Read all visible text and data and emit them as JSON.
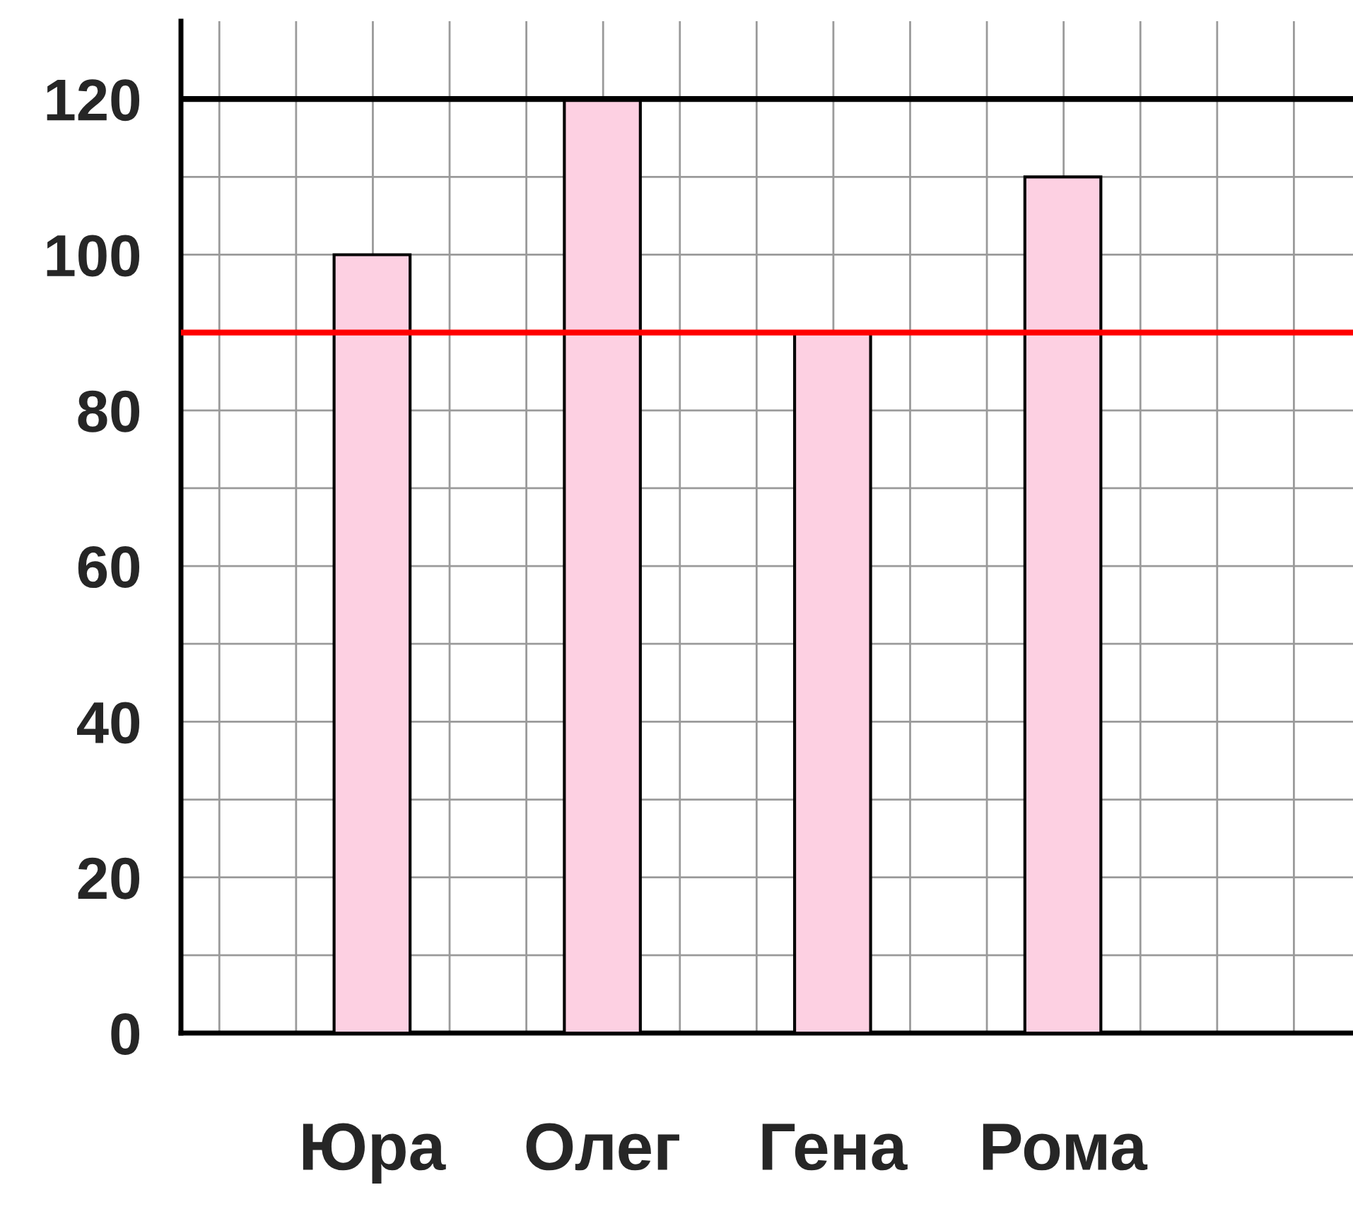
{
  "chart_data": {
    "type": "bar",
    "categories": [
      "Юра",
      "Олег",
      "Гена",
      "Рома"
    ],
    "values": [
      100,
      120,
      90,
      110
    ],
    "color": "#fdd0e2",
    "ylim": [
      0,
      130
    ],
    "yticks": [
      0,
      {
        "value": 10,
        "label": null
      },
      20,
      {
        "value": 30,
        "label": null
      },
      40,
      {
        "value": 50,
        "label": null
      },
      60,
      {
        "value": 70,
        "label": null
      },
      80,
      {
        "value": 90,
        "label": null
      },
      100,
      {
        "value": 110,
        "label": null
      },
      120
    ],
    "ref_lines": [
      {
        "axis": "y",
        "value": 120,
        "color": "#000000"
      },
      {
        "axis": "y",
        "value": 90,
        "color": "#ff0000"
      }
    ],
    "grid": true
  }
}
